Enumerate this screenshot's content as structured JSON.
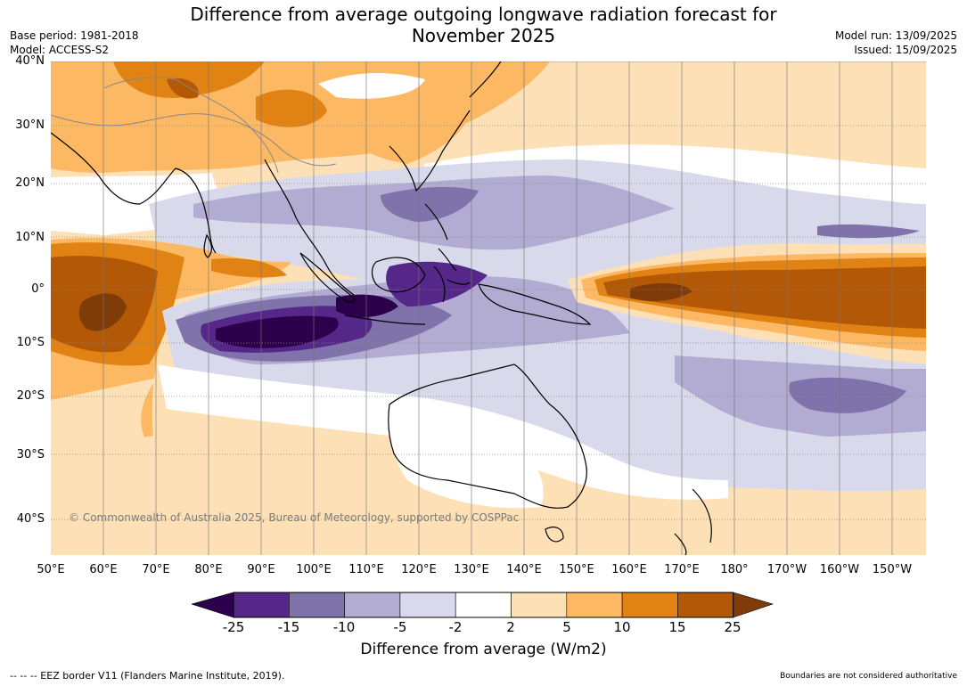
{
  "title_line1": "Difference from average outgoing longwave radiation forecast for",
  "title_line2": "November 2025",
  "meta": {
    "base_period": "Base period: 1981-2018",
    "model": "Model: ACCESS-S2",
    "model_run": "Model run: 13/09/2025",
    "issued": "Issued: 15/09/2025"
  },
  "lat_labels": [
    "40°N",
    "30°N",
    "20°N",
    "10°N",
    "0°",
    "10°S",
    "20°S",
    "30°S",
    "40°S"
  ],
  "lon_labels": [
    "50°E",
    "60°E",
    "70°E",
    "80°E",
    "90°E",
    "100°E",
    "110°E",
    "120°E",
    "130°E",
    "140°E",
    "150°E",
    "160°E",
    "170°E",
    "180°",
    "170°W",
    "160°W",
    "150°W"
  ],
  "copyright": "© Commonwealth of Australia 2025, Bureau of Meteorology, supported by COSPPac",
  "colorbar": {
    "ticks": [
      "-25",
      "-15",
      "-10",
      "-5",
      "-2",
      "2",
      "5",
      "10",
      "15",
      "25"
    ],
    "colors": [
      "#2d004b",
      "#542788",
      "#8073ac",
      "#b2abd2",
      "#d8daeb",
      "#ffffff",
      "#fee0b6",
      "#fdb863",
      "#e08214",
      "#b35806",
      "#7f3b08"
    ],
    "label": "Difference from average (W/m2)"
  },
  "eez_note": "--  --  -- EEZ border V11 (Flanders Marine Institute, 2019).",
  "authority_note": "Boundaries are not considered authoritative"
}
